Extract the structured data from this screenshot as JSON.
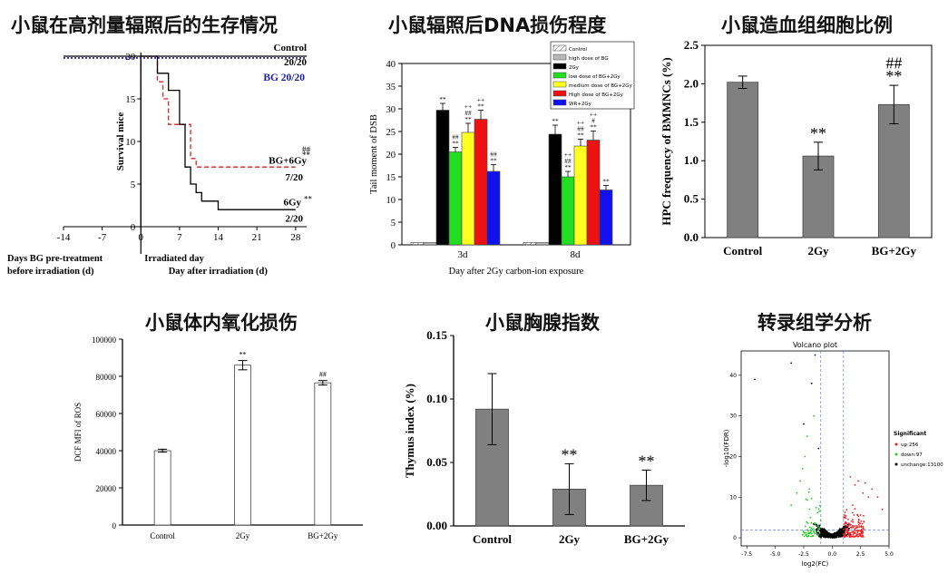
{
  "chart_data": [
    {
      "id": "survival",
      "type": "line",
      "title": "小鼠在高剂量辐照后的生存情况",
      "ylabel": "Survival mice",
      "xlabels": [
        "Days BG pre-treatment",
        "before irradiation (d)",
        "Irradiated day",
        "Day after irradiation (d)"
      ],
      "xlim": [
        -14,
        30
      ],
      "ylim": [
        0,
        20
      ],
      "xticks": [
        "-14",
        "-7",
        "0",
        "7",
        "14",
        "21",
        "28"
      ],
      "yticks": [
        "0",
        "5",
        "10",
        "15",
        "20"
      ],
      "series": [
        {
          "name": "Control",
          "value_label": "20/20",
          "color": "#000000",
          "style": "solid",
          "steps": [
            [
              -14,
              20
            ],
            [
              30,
              20
            ]
          ]
        },
        {
          "name": "BG",
          "value_label": "20/20",
          "label_full": "BG 20/20",
          "color": "#1a1aa6",
          "style": "dotted",
          "steps": [
            [
              -14,
              19.8
            ],
            [
              30,
              19.8
            ]
          ]
        },
        {
          "name": "BG+6Gy",
          "value_label": "7/20",
          "annotation_top": "##",
          "annotation_bottom": "**",
          "color": "#dd2222",
          "style": "dashed",
          "steps": [
            [
              0,
              20
            ],
            [
              3,
              20
            ],
            [
              3,
              17
            ],
            [
              4,
              17
            ],
            [
              4,
              15
            ],
            [
              5,
              15
            ],
            [
              5,
              12
            ],
            [
              9,
              12
            ],
            [
              9,
              8
            ],
            [
              10,
              8
            ],
            [
              10,
              7
            ],
            [
              28,
              7
            ]
          ]
        },
        {
          "name": "6Gy",
          "value_label": "2/20",
          "annotation": "**",
          "color": "#000000",
          "style": "solid",
          "steps": [
            [
              0,
              20
            ],
            [
              3,
              20
            ],
            [
              3,
              18
            ],
            [
              5,
              18
            ],
            [
              5,
              16
            ],
            [
              7,
              16
            ],
            [
              7,
              12
            ],
            [
              8,
              12
            ],
            [
              8,
              7
            ],
            [
              9,
              7
            ],
            [
              9,
              5
            ],
            [
              10,
              5
            ],
            [
              10,
              4
            ],
            [
              11,
              4
            ],
            [
              11,
              3
            ],
            [
              14,
              3
            ],
            [
              14,
              2
            ],
            [
              28,
              2
            ]
          ]
        }
      ]
    },
    {
      "id": "dna",
      "type": "bar",
      "title": "小鼠辐照后DNA损伤程度",
      "ylabel": "Tail moment of DSB",
      "xlabel": "Day after 2Gy carbon-ion exposure",
      "ylim": [
        0,
        40
      ],
      "yticks": [
        "0",
        "5",
        "10",
        "15",
        "20",
        "25",
        "30",
        "35",
        "40"
      ],
      "categories": [
        "3d",
        "8d"
      ],
      "series": [
        {
          "name": "Control",
          "color": "#ffffff",
          "pattern": "hatch",
          "values": [
            0.5,
            0.5
          ],
          "errors": [
            0.2,
            0.2
          ],
          "labels": [
            [],
            []
          ]
        },
        {
          "name": "high dose of BG",
          "color": "#b8b8b8",
          "values": [
            0.5,
            0.5
          ],
          "errors": [
            0.2,
            0.2
          ],
          "labels": [
            [],
            []
          ]
        },
        {
          "name": "2Gy",
          "color": "#000000",
          "values": [
            29.7,
            24.4
          ],
          "errors": [
            1.5,
            2.0
          ],
          "labels": [
            [
              "**"
            ],
            [
              "**"
            ]
          ]
        },
        {
          "name": "low dose of BG+2Gy",
          "color": "#22dd22",
          "values": [
            20.5,
            15.0
          ],
          "errors": [
            1.0,
            1.2
          ],
          "labels": [
            [
              "##",
              "**"
            ],
            [
              "++",
              "##",
              "**"
            ]
          ]
        },
        {
          "name": "medium dose of BG+2Gy",
          "color": "#ffff22",
          "values": [
            24.8,
            21.8
          ],
          "errors": [
            2.0,
            1.5
          ],
          "labels": [
            [
              "++",
              "##",
              "**"
            ],
            [
              "++",
              "##",
              "**"
            ]
          ]
        },
        {
          "name": "High dose of BG+2Gy",
          "color": "#ee1111",
          "values": [
            27.7,
            23.1
          ],
          "errors": [
            2.0,
            2.0
          ],
          "labels": [
            [
              "++",
              "**"
            ],
            [
              "++",
              "#",
              "**"
            ]
          ]
        },
        {
          "name": "WR+2Gy",
          "color": "#1111ee",
          "values": [
            16.2,
            12.1
          ],
          "errors": [
            1.5,
            1.0
          ],
          "labels": [
            [
              "##",
              "**"
            ],
            [
              "**"
            ]
          ]
        }
      ]
    },
    {
      "id": "hpc",
      "type": "bar",
      "title": "小鼠造血组细胞比例",
      "ylabel": "HPC frequency of BMMNCs (%)",
      "ylim": [
        0,
        2.5
      ],
      "yticks": [
        "0.0",
        "0.5",
        "1.0",
        "1.5",
        "2.0",
        "2.5"
      ],
      "categories": [
        "Control",
        "2Gy",
        "BG+2Gy"
      ],
      "values": [
        2.02,
        1.06,
        1.73
      ],
      "errors": [
        0.08,
        0.18,
        0.25
      ],
      "labels": [
        [],
        [
          "**"
        ],
        [
          "##",
          "**"
        ]
      ],
      "color": "#808080"
    },
    {
      "id": "ros",
      "type": "bar",
      "title": "小鼠体内氧化损伤",
      "ylabel": "DCF MFI of ROS",
      "ylim": [
        0,
        100000
      ],
      "yticks": [
        "0",
        "20000",
        "40000",
        "60000",
        "80000",
        "100000"
      ],
      "categories": [
        "Control",
        "2Gy",
        "BG+2Gy"
      ],
      "values": [
        40000,
        86000,
        76500
      ],
      "errors": [
        800,
        2500,
        1200
      ],
      "labels": [
        [],
        [
          "**"
        ],
        [
          "##"
        ]
      ],
      "color": "#ffffff"
    },
    {
      "id": "thymus",
      "type": "bar",
      "title": "小鼠胸腺指数",
      "ylabel": "Thymus index (%)",
      "ylim": [
        0,
        0.15
      ],
      "yticks": [
        "0.00",
        "0.05",
        "0.10",
        "0.15"
      ],
      "categories": [
        "Control",
        "2Gy",
        "BG+2Gy"
      ],
      "values": [
        0.092,
        0.029,
        0.032
      ],
      "errors": [
        0.028,
        0.02,
        0.012
      ],
      "labels": [
        [],
        [
          "**"
        ],
        [
          "**"
        ]
      ],
      "color": "#808080"
    },
    {
      "id": "volcano",
      "type": "scatter",
      "title": "转录组学分析",
      "plot_title": "Volcano plot",
      "xlabel": "log2(FC)",
      "ylabel": "-log10(FDR)",
      "xlim": [
        -8,
        5
      ],
      "ylim": [
        -2,
        46
      ],
      "xticks": [
        "-7.5",
        "-5.0",
        "-2.5",
        "0.0",
        "2.5",
        "5.0"
      ],
      "yticks": [
        "0",
        "10",
        "20",
        "30",
        "40"
      ],
      "thresholds": {
        "log2fc": [
          -1,
          1
        ],
        "fdr": 1.9
      },
      "legend_title": "Significant",
      "legend": [
        {
          "label": "up:256",
          "color": "#ee2222"
        },
        {
          "label": "down:97",
          "color": "#22cc22"
        },
        {
          "label": "unchange:13100",
          "color": "#000000"
        }
      ]
    }
  ]
}
